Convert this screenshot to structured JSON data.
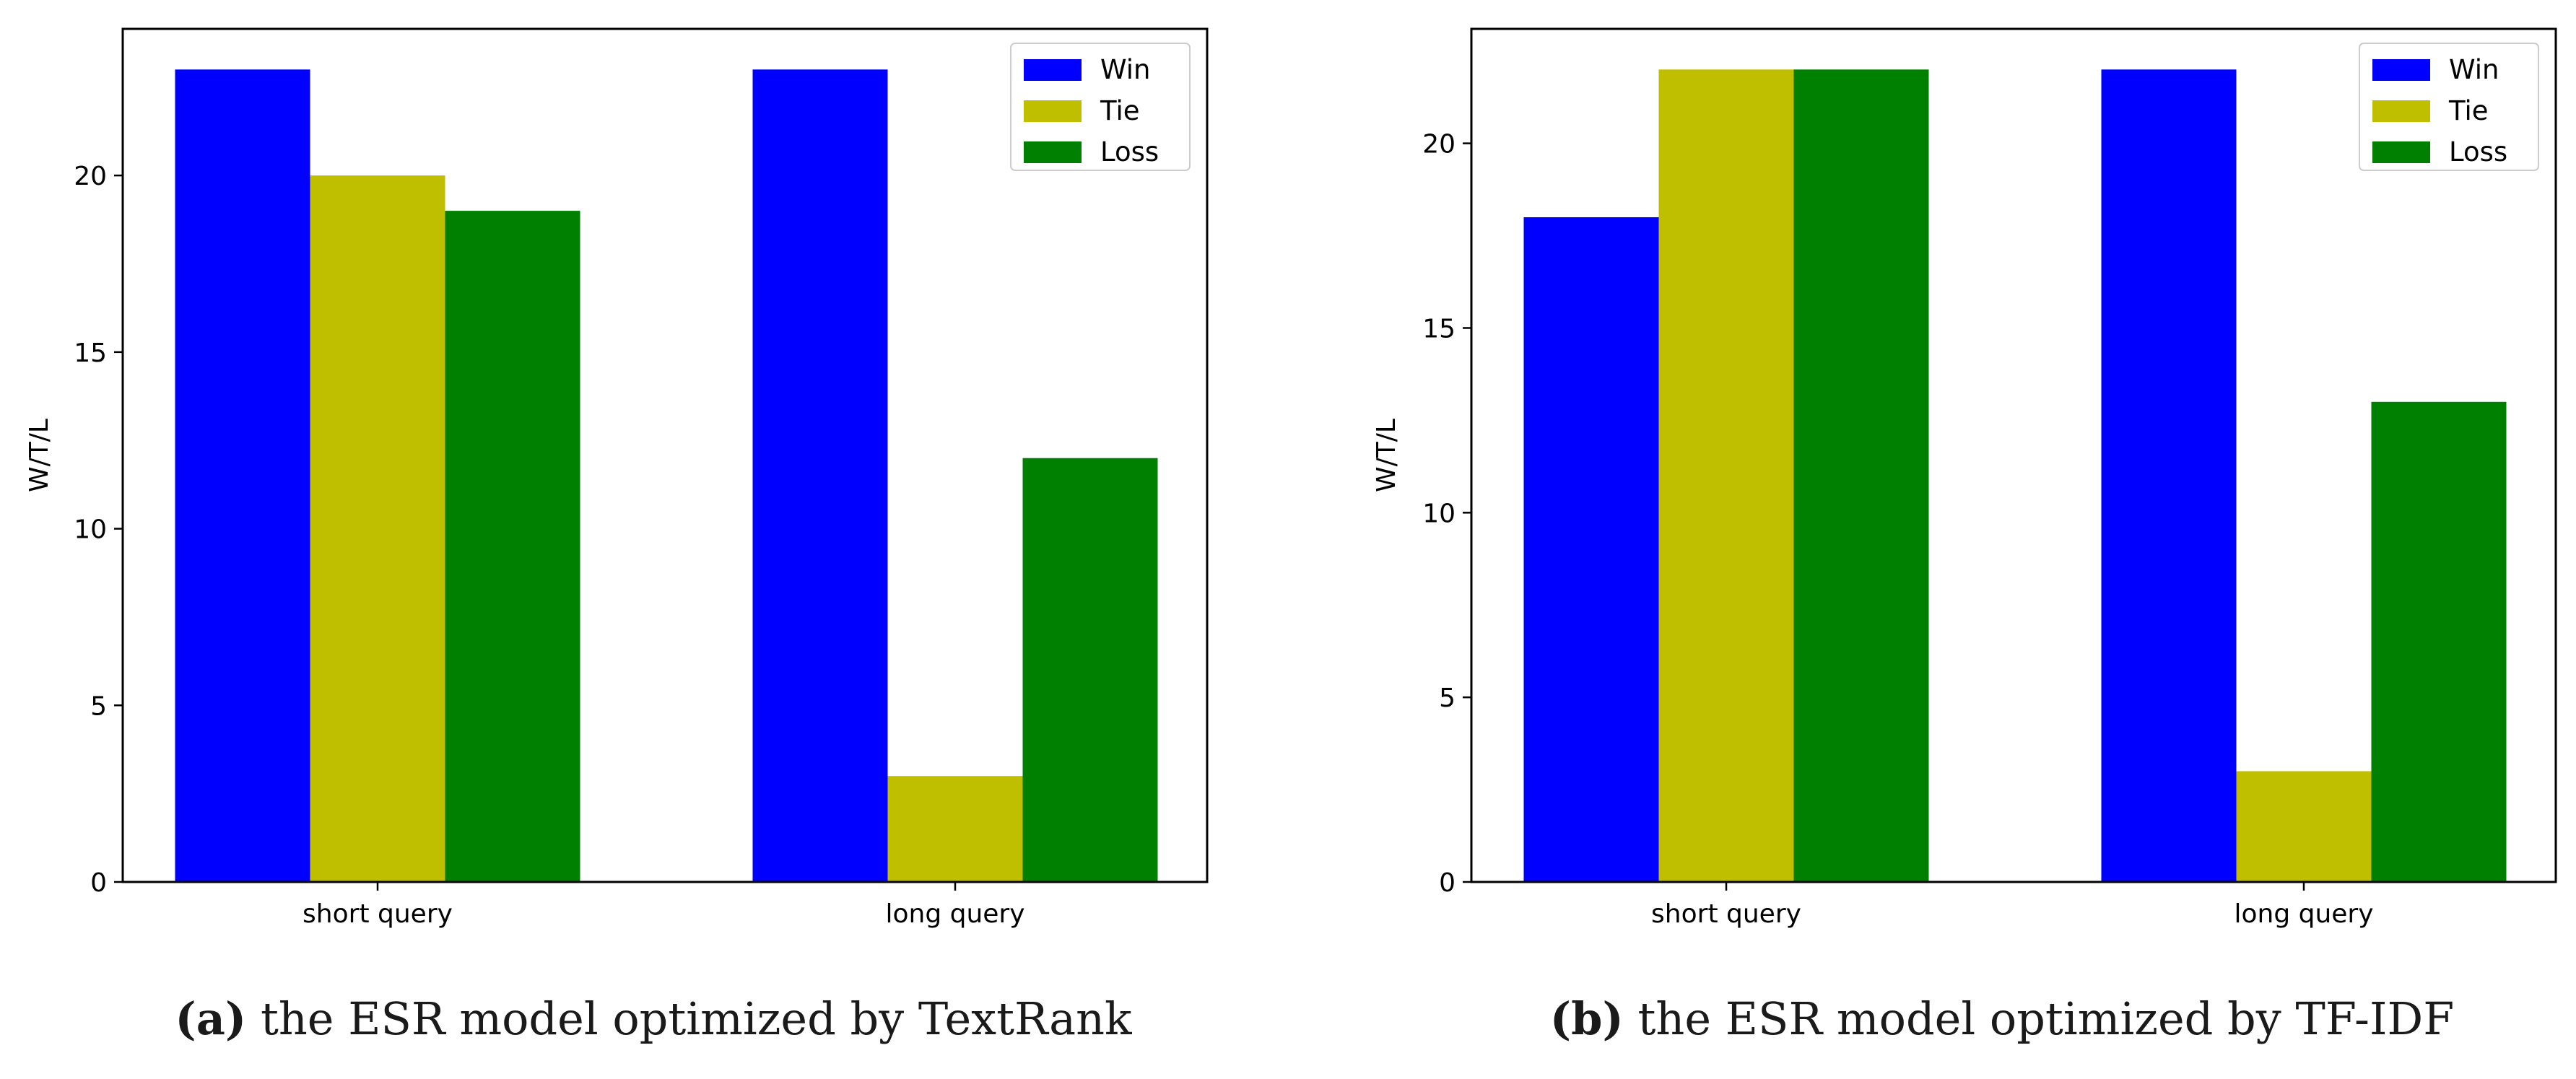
{
  "chart_data": [
    {
      "type": "bar",
      "ylabel": "W/T/L",
      "xlabel": "",
      "categories": [
        "short query",
        "long query"
      ],
      "series": [
        {
          "name": "Win",
          "color": "#0000ff",
          "values": [
            23,
            23
          ]
        },
        {
          "name": "Tie",
          "color": "#bfbf00",
          "values": [
            20,
            3
          ]
        },
        {
          "name": "Loss",
          "color": "#008000",
          "values": [
            19,
            12
          ]
        }
      ],
      "ylim": [
        0,
        24.15
      ],
      "yticks": [
        0,
        5,
        10,
        15,
        20
      ],
      "legend_position": "top-right",
      "grid": false,
      "caption": {
        "letter": "(a)",
        "text": " the ESR model optimized by TextRank"
      }
    },
    {
      "type": "bar",
      "ylabel": "W/T/L",
      "xlabel": "",
      "categories": [
        "short query",
        "long query"
      ],
      "series": [
        {
          "name": "Win",
          "color": "#0000ff",
          "values": [
            18,
            22
          ]
        },
        {
          "name": "Tie",
          "color": "#bfbf00",
          "values": [
            22,
            3
          ]
        },
        {
          "name": "Loss",
          "color": "#008000",
          "values": [
            22,
            13
          ]
        }
      ],
      "ylim": [
        0,
        23.1
      ],
      "yticks": [
        0,
        5,
        10,
        15,
        20
      ],
      "legend_position": "top-right",
      "grid": false,
      "caption": {
        "letter": "(b)",
        "text": " the ESR model optimized by TF-IDF"
      }
    }
  ]
}
